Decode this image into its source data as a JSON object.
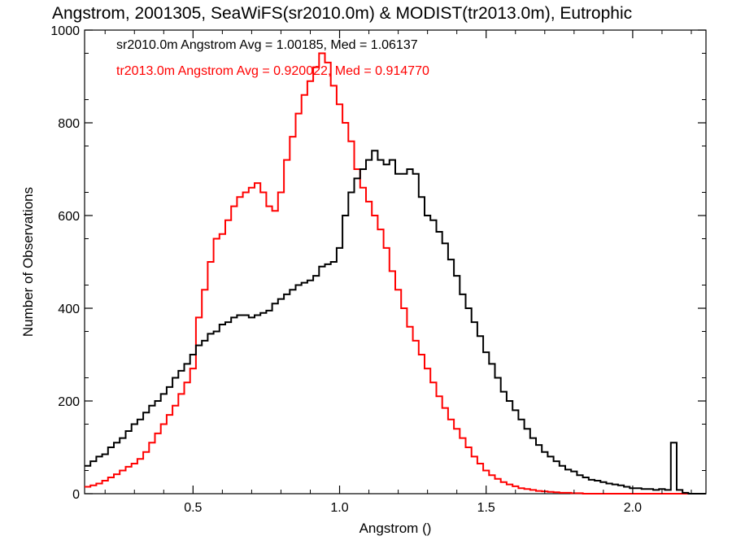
{
  "chart_data": {
    "type": "line",
    "title": "Angstrom, 2001305, SeaWiFS(sr2010.0m) & MODIST(tr2013.0m), Eutrophic",
    "xlabel": "Angstrom ()",
    "ylabel": "Number of Observations",
    "xlim": [
      0.13,
      2.25
    ],
    "ylim": [
      0,
      1000
    ],
    "xticks": [
      "0.5",
      "1.0",
      "1.5",
      "2.0"
    ],
    "yticks": [
      "0",
      "200",
      "400",
      "600",
      "800",
      "1000"
    ],
    "grid": false,
    "annotations": [
      {
        "text": "sr2010.0m Angstrom Avg = 1.00185, Med = 1.06137",
        "color": "#000000"
      },
      {
        "text": "tr2013.0m Angstrom Avg = 0.920022, Med = 0.914770",
        "color": "#ff0000"
      }
    ],
    "series": [
      {
        "color": "#000000",
        "x": [
          0.13,
          0.15,
          0.17,
          0.19,
          0.21,
          0.23,
          0.25,
          0.27,
          0.29,
          0.31,
          0.33,
          0.35,
          0.37,
          0.39,
          0.41,
          0.43,
          0.45,
          0.47,
          0.49,
          0.51,
          0.53,
          0.55,
          0.57,
          0.59,
          0.61,
          0.63,
          0.65,
          0.67,
          0.69,
          0.71,
          0.73,
          0.75,
          0.77,
          0.79,
          0.81,
          0.83,
          0.85,
          0.87,
          0.89,
          0.91,
          0.93,
          0.95,
          0.97,
          0.99,
          1.01,
          1.03,
          1.05,
          1.07,
          1.09,
          1.11,
          1.13,
          1.15,
          1.17,
          1.19,
          1.21,
          1.23,
          1.25,
          1.27,
          1.29,
          1.31,
          1.33,
          1.35,
          1.37,
          1.39,
          1.41,
          1.43,
          1.45,
          1.47,
          1.49,
          1.51,
          1.53,
          1.55,
          1.57,
          1.59,
          1.61,
          1.63,
          1.65,
          1.67,
          1.69,
          1.71,
          1.73,
          1.75,
          1.77,
          1.79,
          1.81,
          1.83,
          1.85,
          1.87,
          1.89,
          1.91,
          1.93,
          1.95,
          1.97,
          1.99,
          2.01,
          2.03,
          2.05,
          2.07,
          2.09,
          2.11,
          2.13,
          2.15,
          2.17,
          2.19,
          2.21,
          2.23
        ],
        "values": [
          60,
          70,
          80,
          85,
          100,
          110,
          120,
          135,
          150,
          160,
          175,
          190,
          200,
          215,
          230,
          250,
          265,
          280,
          300,
          320,
          330,
          345,
          350,
          365,
          370,
          380,
          385,
          385,
          380,
          385,
          390,
          395,
          410,
          420,
          430,
          440,
          450,
          455,
          460,
          470,
          490,
          495,
          500,
          530,
          600,
          650,
          680,
          700,
          720,
          740,
          720,
          710,
          720,
          690,
          690,
          700,
          690,
          640,
          600,
          590,
          565,
          540,
          505,
          470,
          430,
          400,
          370,
          340,
          305,
          280,
          250,
          220,
          200,
          180,
          160,
          140,
          120,
          105,
          90,
          80,
          70,
          60,
          52,
          48,
          40,
          35,
          30,
          28,
          25,
          22,
          20,
          18,
          15,
          12,
          12,
          10,
          10,
          8,
          10,
          8,
          110,
          8,
          2,
          0,
          0,
          0
        ]
      },
      {
        "color": "#ff0000",
        "x": [
          0.13,
          0.15,
          0.17,
          0.19,
          0.21,
          0.23,
          0.25,
          0.27,
          0.29,
          0.31,
          0.33,
          0.35,
          0.37,
          0.39,
          0.41,
          0.43,
          0.45,
          0.47,
          0.49,
          0.51,
          0.53,
          0.55,
          0.57,
          0.59,
          0.61,
          0.63,
          0.65,
          0.67,
          0.69,
          0.71,
          0.73,
          0.75,
          0.77,
          0.79,
          0.81,
          0.83,
          0.85,
          0.87,
          0.89,
          0.91,
          0.93,
          0.95,
          0.97,
          0.99,
          1.01,
          1.03,
          1.05,
          1.07,
          1.09,
          1.11,
          1.13,
          1.15,
          1.17,
          1.19,
          1.21,
          1.23,
          1.25,
          1.27,
          1.29,
          1.31,
          1.33,
          1.35,
          1.37,
          1.39,
          1.41,
          1.43,
          1.45,
          1.47,
          1.49,
          1.51,
          1.53,
          1.55,
          1.57,
          1.59,
          1.61,
          1.63,
          1.65,
          1.67,
          1.69,
          1.71,
          1.73,
          1.75,
          1.77,
          1.79,
          1.81,
          1.83,
          1.85,
          1.87,
          1.89,
          1.91,
          1.93,
          1.95,
          1.97,
          1.99,
          2.01,
          2.03,
          2.05,
          2.07,
          2.09,
          2.11,
          2.13,
          2.15,
          2.17,
          2.19,
          2.21,
          2.23
        ],
        "values": [
          15,
          18,
          22,
          28,
          35,
          42,
          50,
          58,
          65,
          75,
          90,
          110,
          130,
          150,
          170,
          190,
          215,
          240,
          270,
          380,
          440,
          500,
          550,
          560,
          590,
          620,
          640,
          650,
          660,
          670,
          650,
          620,
          610,
          650,
          720,
          770,
          820,
          860,
          890,
          920,
          950,
          930,
          880,
          840,
          800,
          760,
          700,
          660,
          630,
          600,
          570,
          530,
          480,
          440,
          400,
          360,
          330,
          300,
          270,
          240,
          210,
          185,
          160,
          140,
          120,
          100,
          80,
          65,
          50,
          40,
          32,
          25,
          20,
          16,
          12,
          10,
          8,
          6,
          5,
          4,
          3,
          2,
          2,
          1,
          1,
          0,
          0,
          0,
          0,
          0,
          0,
          0,
          0,
          0,
          0,
          0,
          0,
          0,
          0,
          0,
          0,
          0,
          0,
          0,
          0,
          0
        ]
      }
    ]
  }
}
